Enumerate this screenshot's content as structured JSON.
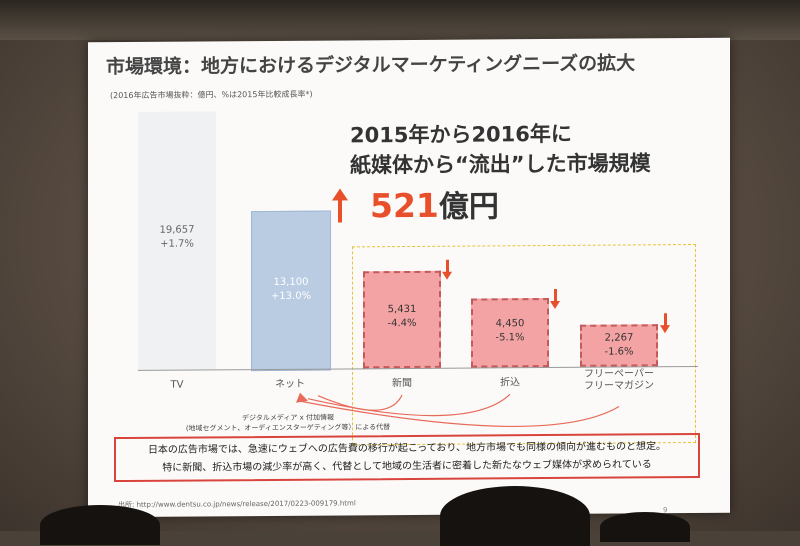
{
  "slide": {
    "title": "市場環境：地方におけるデジタルマーケティングニーズの拡大",
    "subtitle": "(2016年広告市場抜粋：億円、%は2015年比較成長率*)",
    "headline_line1": "2015年から2016年に",
    "headline_line2": "紙媒体から“流出”した市場規模",
    "outflow_value": "521",
    "outflow_unit": "億円",
    "bars": [
      {
        "label": "TV",
        "value": "19,657",
        "growth": "+1.7%"
      },
      {
        "label": "ネット",
        "value": "13,100",
        "growth": "+13.0%"
      },
      {
        "label": "新聞",
        "value": "5,431",
        "growth": "-4.4%"
      },
      {
        "label": "折込",
        "value": "4,450",
        "growth": "-5.1%"
      },
      {
        "label_line1": "フリーペーパー",
        "label_line2": "フリーマガジン",
        "value": "2,267",
        "growth": "-1.6%"
      }
    ],
    "annotation_line1": "デジタルメディア x 付加情報",
    "annotation_line2": "(地域セグメント、オーディエンスターゲティング等）による代替",
    "conclusion_line1": "日本の広告市場では、急速にウェブへの広告費の移行が起こっており、地方市場でも同様の傾向が進むものと想定。",
    "conclusion_line2": "特に新聞、折込市場の減少率が高く、代替として地域の生活者に密着した新たなウェブ媒体が求められている",
    "source": "出所: http://www.dentsu.co.jp/news/release/2017/0223-009179.html",
    "page_number": "9"
  },
  "colors": {
    "accent_red": "#e8502c",
    "net_bar": "#b9cce2",
    "print_bar": "#f4a3a4",
    "tv_bar": "#f0f1f3",
    "highlight_box": "#e6c33a"
  }
}
